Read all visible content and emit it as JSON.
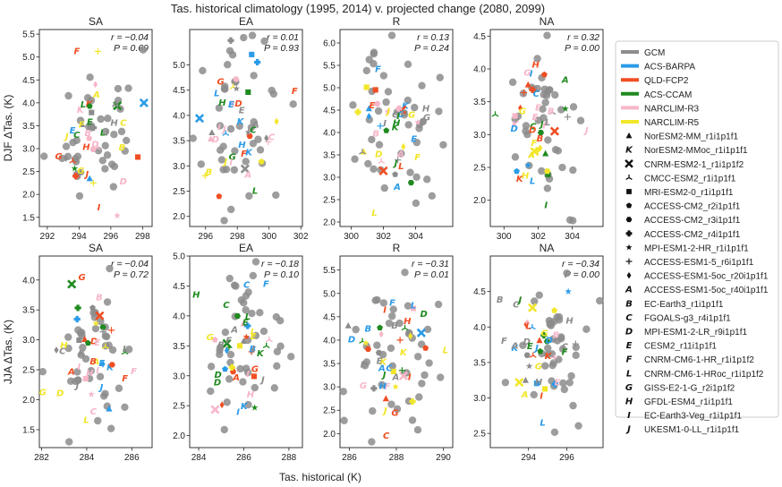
{
  "chart_data": {
    "type": "scatter",
    "title": "Tas. historical climatology (1995, 2014) v. projected change (2080, 2099)",
    "xlabel": "Tas. historical (K)",
    "colors": {
      "GCM": "#8c8c8c",
      "ACS-BARPA": "#2b9be8",
      "QLD-FCP2": "#f04e23",
      "ACS-CCAM": "#1f8a1f",
      "NARCLIM-R3": "#f7b6c8",
      "NARCLIM-R5": "#f2e62a"
    },
    "groups": [
      {
        "label": "GCM",
        "color": "#8c8c8c"
      },
      {
        "label": "ACS-BARPA",
        "color": "#2b9be8"
      },
      {
        "label": "QLD-FCP2",
        "color": "#f04e23"
      },
      {
        "label": "ACS-CCAM",
        "color": "#1f8a1f"
      },
      {
        "label": "NARCLIM-R3",
        "color": "#f7b6c8"
      },
      {
        "label": "NARCLIM-R5",
        "color": "#f2e62a"
      }
    ],
    "models": [
      {
        "marker": "tri",
        "label": "NorESM2-MM_r1i1p1f1"
      },
      {
        "marker": "K",
        "label": "NorESM2-MMoc_r1i1p1f1"
      },
      {
        "marker": "xx",
        "label": "CNRM-ESM2-1_r1i1p1f2"
      },
      {
        "marker": "tri3",
        "label": "CMCC-ESM2_r1i1p1f1"
      },
      {
        "marker": "sq",
        "label": "MRI-ESM2-0_r1i1p1f1"
      },
      {
        "marker": "pent",
        "label": "ACCESS-CM2_r2i1p1f1"
      },
      {
        "marker": "hex",
        "label": "ACCESS-CM2_r3i1p1f1"
      },
      {
        "marker": "P",
        "label": "ACCESS-CM2_r4i1p1f1"
      },
      {
        "marker": "star",
        "label": "MPI-ESM1-2-HR_r1i1p1f1"
      },
      {
        "marker": "plus",
        "label": "ACCESS-ESM1-5_r6i1p1f1"
      },
      {
        "marker": "dia",
        "label": "ACCESS-ESM1-5oc_r20i1p1f1"
      },
      {
        "marker": "A",
        "label": "ACCESS-ESM1-5oc_r40i1p1f1"
      },
      {
        "marker": "B",
        "label": "EC-Earth3_r1i1p1f1"
      },
      {
        "marker": "C",
        "label": "FGOALS-g3_r4i1p1f1"
      },
      {
        "marker": "D",
        "label": "MPI-ESM1-2-LR_r9i1p1f1"
      },
      {
        "marker": "E",
        "label": "CESM2_r11i1p1f1"
      },
      {
        "marker": "F",
        "label": "CNRM-CM6-1-HR_r1i1p1f2"
      },
      {
        "marker": "L",
        "label": "CNRM-CM6-1-HRoc_r1i1p1f2"
      },
      {
        "marker": "G",
        "label": "GISS-E2-1-G_r2i1p1f2"
      },
      {
        "marker": "H",
        "label": "GFDL-ESM4_r1i1p1f1"
      },
      {
        "marker": "I",
        "label": "EC-Earth3-Veg_r1i1p1f1"
      },
      {
        "marker": "J",
        "label": "UKESM1-0-LL_r1i1p1f1"
      }
    ],
    "rows": [
      {
        "ylabel": "DJF ΔTas. (K)"
      },
      {
        "ylabel": "JJA ΔTas. (K)"
      }
    ],
    "panels": [
      {
        "title": "SA",
        "r": "r = −0.04",
        "p": "P = 0.69",
        "xlim": [
          291.5,
          298.6
        ],
        "ylim": [
          1.3,
          5.6
        ],
        "xticks": [
          292,
          294,
          296,
          298
        ],
        "yticks": [
          1.5,
          2.0,
          2.5,
          3.0,
          3.5,
          4.0,
          4.5,
          5.0,
          5.5
        ],
        "seed": 11
      },
      {
        "title": "EA",
        "r": "r = 0.01",
        "p": "P = 0.93",
        "xlim": [
          295.0,
          302.1
        ],
        "ylim": [
          1.8,
          5.7
        ],
        "xticks": [
          296,
          298,
          300,
          302
        ],
        "yticks": [
          2.0,
          2.5,
          3.0,
          3.5,
          4.0,
          4.5,
          5.0
        ],
        "seed": 23
      },
      {
        "title": "R",
        "r": "r = 0.13",
        "p": "P = 0.24",
        "xlim": [
          299.3,
          306.3
        ],
        "ylim": [
          1.9,
          6.3
        ],
        "xticks": [
          300,
          302,
          304
        ],
        "yticks": [
          2.0,
          2.5,
          3.0,
          3.5,
          4.0,
          4.5,
          5.0,
          5.5,
          6.0
        ],
        "seed": 37
      },
      {
        "title": "NA",
        "r": "r = 0.32",
        "p": "P = 0.00",
        "xlim": [
          299.2,
          305.8
        ],
        "ylim": [
          1.6,
          4.6
        ],
        "xticks": [
          300,
          302,
          304
        ],
        "yticks": [
          2.0,
          2.5,
          3.0,
          3.5,
          4.0,
          4.5
        ],
        "seed": 41
      },
      {
        "title": "SA",
        "r": "r = −0.04",
        "p": "P = 0.72",
        "xlim": [
          281.9,
          286.9
        ],
        "ylim": [
          1.2,
          4.4
        ],
        "xticks": [
          282,
          284,
          286
        ],
        "yticks": [
          1.5,
          2.0,
          2.5,
          3.0,
          3.5,
          4.0
        ],
        "seed": 53
      },
      {
        "title": "EA",
        "r": "r = −0.18",
        "p": "P = 0.10",
        "xlim": [
          283.6,
          288.6
        ],
        "ylim": [
          1.8,
          5.0
        ],
        "xticks": [
          284,
          286,
          288
        ],
        "yticks": [
          2.0,
          2.5,
          3.0,
          3.5,
          4.0,
          4.5,
          5.0
        ],
        "seed": 67
      },
      {
        "title": "R",
        "r": "r = −0.31",
        "p": "P = 0.01",
        "xlim": [
          285.6,
          290.4
        ],
        "ylim": [
          1.7,
          5.8
        ],
        "xticks": [
          286,
          288,
          290
        ],
        "yticks": [
          2.0,
          2.5,
          3.0,
          3.5,
          4.0,
          4.5,
          5.0,
          5.5
        ],
        "seed": 79
      },
      {
        "title": "NA",
        "r": "r = −0.34",
        "p": "P = 0.00",
        "xlim": [
          292.0,
          297.9
        ],
        "ylim": [
          2.3,
          5.0
        ],
        "xticks": [
          294,
          296
        ],
        "yticks": [
          2.5,
          3.0,
          3.5,
          4.0,
          4.5
        ],
        "seed": 97
      }
    ]
  }
}
